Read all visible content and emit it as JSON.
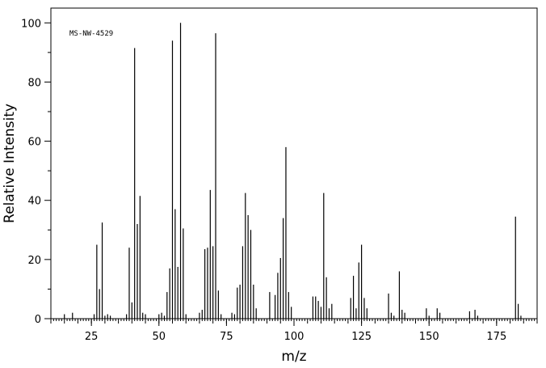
{
  "chart_data": {
    "type": "bar",
    "annotation": "MS-NW-4529",
    "xlabel": "m/z",
    "ylabel": "Relative Intensity",
    "xlim": [
      10,
      190
    ],
    "ylim": [
      0,
      105
    ],
    "x_ticks": [
      25,
      50,
      75,
      100,
      125,
      150,
      175
    ],
    "y_ticks": [
      0,
      20,
      40,
      60,
      80,
      100
    ],
    "tick_labels_x": [
      "25",
      "50",
      "75",
      "100",
      "125",
      "150",
      "175"
    ],
    "tick_labels_y": [
      "0",
      "20",
      "40",
      "60",
      "80",
      "100"
    ],
    "grid": false,
    "legend": "none",
    "peaks": [
      {
        "x": 15,
        "y": 1.5
      },
      {
        "x": 18,
        "y": 2
      },
      {
        "x": 26,
        "y": 1.5
      },
      {
        "x": 27,
        "y": 25
      },
      {
        "x": 28,
        "y": 10
      },
      {
        "x": 29,
        "y": 32.5
      },
      {
        "x": 30,
        "y": 1
      },
      {
        "x": 31,
        "y": 1.5
      },
      {
        "x": 32,
        "y": 1
      },
      {
        "x": 38,
        "y": 1.5
      },
      {
        "x": 39,
        "y": 24
      },
      {
        "x": 40,
        "y": 5.5
      },
      {
        "x": 41,
        "y": 91.5
      },
      {
        "x": 42,
        "y": 32
      },
      {
        "x": 43,
        "y": 41.5
      },
      {
        "x": 44,
        "y": 2
      },
      {
        "x": 45,
        "y": 1.5
      },
      {
        "x": 50,
        "y": 1.5
      },
      {
        "x": 51,
        "y": 2
      },
      {
        "x": 52,
        "y": 1
      },
      {
        "x": 53,
        "y": 9
      },
      {
        "x": 54,
        "y": 17
      },
      {
        "x": 55,
        "y": 94
      },
      {
        "x": 56,
        "y": 37
      },
      {
        "x": 57,
        "y": 17.5
      },
      {
        "x": 58,
        "y": 100
      },
      {
        "x": 59,
        "y": 30.5
      },
      {
        "x": 60,
        "y": 1.5
      },
      {
        "x": 65,
        "y": 2
      },
      {
        "x": 66,
        "y": 3
      },
      {
        "x": 67,
        "y": 23.5
      },
      {
        "x": 68,
        "y": 24
      },
      {
        "x": 69,
        "y": 43.5
      },
      {
        "x": 70,
        "y": 24.5
      },
      {
        "x": 71,
        "y": 96.5
      },
      {
        "x": 72,
        "y": 9.5
      },
      {
        "x": 73,
        "y": 1.5
      },
      {
        "x": 77,
        "y": 2
      },
      {
        "x": 78,
        "y": 1.5
      },
      {
        "x": 79,
        "y": 10.5
      },
      {
        "x": 80,
        "y": 11.5
      },
      {
        "x": 81,
        "y": 24.5
      },
      {
        "x": 82,
        "y": 42.5
      },
      {
        "x": 83,
        "y": 35
      },
      {
        "x": 84,
        "y": 30
      },
      {
        "x": 85,
        "y": 11.5
      },
      {
        "x": 86,
        "y": 3.5
      },
      {
        "x": 91,
        "y": 9
      },
      {
        "x": 93,
        "y": 8
      },
      {
        "x": 94,
        "y": 15.5
      },
      {
        "x": 95,
        "y": 20.5
      },
      {
        "x": 96,
        "y": 34
      },
      {
        "x": 97,
        "y": 58
      },
      {
        "x": 98,
        "y": 9
      },
      {
        "x": 99,
        "y": 4
      },
      {
        "x": 107,
        "y": 7.5
      },
      {
        "x": 108,
        "y": 7.5
      },
      {
        "x": 109,
        "y": 6
      },
      {
        "x": 110,
        "y": 4
      },
      {
        "x": 111,
        "y": 42.5
      },
      {
        "x": 112,
        "y": 14
      },
      {
        "x": 113,
        "y": 3.5
      },
      {
        "x": 114,
        "y": 5
      },
      {
        "x": 121,
        "y": 7
      },
      {
        "x": 122,
        "y": 14.5
      },
      {
        "x": 123,
        "y": 3.5
      },
      {
        "x": 124,
        "y": 19
      },
      {
        "x": 125,
        "y": 25
      },
      {
        "x": 126,
        "y": 7
      },
      {
        "x": 127,
        "y": 3.5
      },
      {
        "x": 135,
        "y": 8.5
      },
      {
        "x": 136,
        "y": 2
      },
      {
        "x": 137,
        "y": 1
      },
      {
        "x": 139,
        "y": 16
      },
      {
        "x": 140,
        "y": 3
      },
      {
        "x": 141,
        "y": 2
      },
      {
        "x": 149,
        "y": 3.5
      },
      {
        "x": 150,
        "y": 1
      },
      {
        "x": 153,
        "y": 3.5
      },
      {
        "x": 154,
        "y": 2
      },
      {
        "x": 165,
        "y": 2.5
      },
      {
        "x": 167,
        "y": 3
      },
      {
        "x": 168,
        "y": 1
      },
      {
        "x": 182,
        "y": 34.5
      },
      {
        "x": 183,
        "y": 5
      },
      {
        "x": 184,
        "y": 1
      }
    ]
  }
}
